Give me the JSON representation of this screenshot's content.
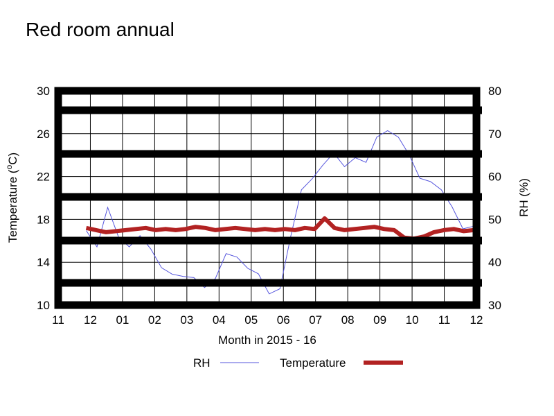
{
  "chart_data": {
    "type": "line",
    "title": "Red room annual",
    "xlabel": "Month in 2015 - 16",
    "ylabel_left": "Temperature (oC)",
    "ylabel_left_base": "Temperature (",
    "ylabel_left_sup": "o",
    "ylabel_left_tail": "C)",
    "ylabel_right": "RH (%)",
    "x_ticks": [
      "11",
      "12",
      "01",
      "02",
      "03",
      "04",
      "05",
      "06",
      "07",
      "08",
      "09",
      "10",
      "11",
      "12"
    ],
    "y_left_ticks": [
      "10",
      "14",
      "18",
      "22",
      "26",
      "30"
    ],
    "y_right_ticks": [
      "30",
      "40",
      "50",
      "60",
      "70",
      "80"
    ],
    "ylim_left": [
      10,
      30
    ],
    "ylim_right": [
      30,
      80
    ],
    "grid": true,
    "legend_position": "bottom",
    "series": [
      {
        "name": "RH",
        "axis": "right",
        "color": "#5555dd",
        "values": [
          47.4,
          43.6,
          52.8,
          45.9,
          43.6,
          46.2,
          43.1,
          38.7,
          37.2,
          36.7,
          36.4,
          34.1,
          36.2,
          42.0,
          41.2,
          38.6,
          37.3,
          32.6,
          33.8,
          46.0,
          56.9,
          59.5,
          62.7,
          65.5,
          62.3,
          64.4,
          63.3,
          69.2,
          70.7,
          69.2,
          65.1,
          59.6,
          58.8,
          56.9,
          52.9,
          47.8,
          48.4
        ]
      },
      {
        "name": "Temperature",
        "axis": "left",
        "color": "#b22222",
        "values": [
          17.2,
          17.0,
          16.8,
          16.9,
          17.0,
          17.1,
          17.2,
          17.0,
          17.1,
          17.0,
          17.1,
          17.3,
          17.2,
          17.0,
          17.1,
          17.2,
          17.1,
          17.0,
          17.1,
          17.0,
          17.1,
          17.0,
          17.2,
          17.1,
          18.1,
          17.2,
          17.0,
          17.1,
          17.2,
          17.3,
          17.1,
          17.0,
          16.3,
          16.2,
          16.4,
          16.8,
          17.0,
          17.1,
          16.9,
          17.0
        ]
      }
    ]
  }
}
